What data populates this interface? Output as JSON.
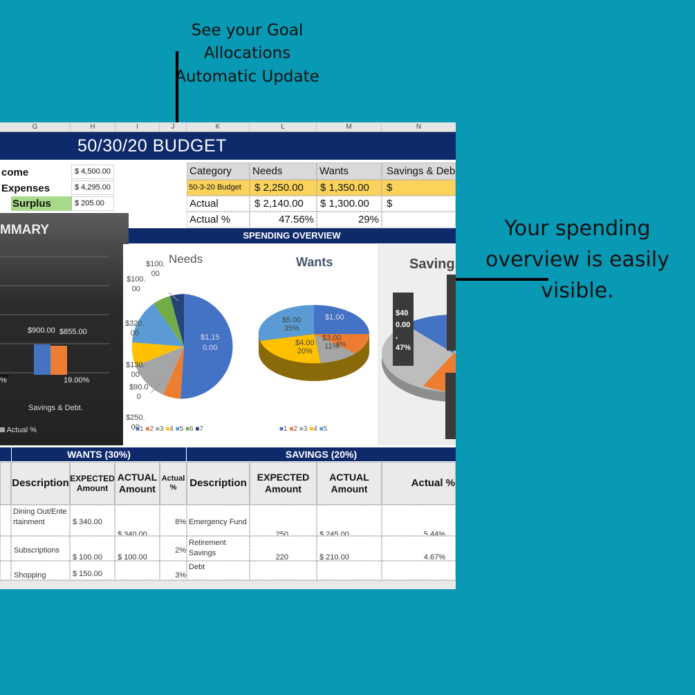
{
  "callouts": {
    "top": [
      "See your Goal",
      "Allocations",
      "Automatic Update"
    ],
    "right": [
      "Your spending",
      "overview is easily",
      "visible."
    ]
  },
  "sheet": {
    "columns": [
      "G",
      "H",
      "I",
      "J",
      "K",
      "L",
      "M",
      "N"
    ],
    "title": "50/30/20 BUDGET",
    "left_block": {
      "income_label": "come",
      "income_value": "$ 4,500.00",
      "expenses_label": "Expenses",
      "expenses_value": "$ 4,295.00",
      "surplus_label": "Surplus",
      "surplus_value": "$   205.00"
    },
    "category_table": {
      "headers": [
        "Category",
        "Needs",
        "Wants",
        "Savings & Debt"
      ],
      "rows": [
        {
          "label": "50-3-20 Budget",
          "needs": "$    2,250.00",
          "wants": "$    1,350.00",
          "savings": "$"
        },
        {
          "label": "Actual",
          "needs": "$    2,140.00",
          "wants": "$    1,300.00",
          "savings": "$"
        },
        {
          "label": "Actual    %",
          "needs": "47.56%",
          "wants": "29%",
          "savings": ""
        }
      ]
    },
    "spending_overview": "SPENDING OVERVIEW",
    "summary": {
      "title": "MMARY",
      "bar_label_1": "$900.00",
      "bar_label_2": "$855.00",
      "pct_left": "%",
      "pct_right": "19.00%",
      "category": "Savings & Debt.",
      "legend": "Actual    %"
    },
    "needs_chart": {
      "title": "Needs",
      "labels": [
        "$90.0\n0",
        "$100.\n00",
        "$250.\n00",
        "$100.\n00",
        "$320.\n00",
        "$130.\n00"
      ],
      "main_label": "$1,15\n0.00",
      "legend": [
        "1",
        "2",
        "3",
        "4",
        "5",
        "6",
        "7"
      ]
    },
    "wants_chart": {
      "title": "Wants",
      "labels": {
        "l1": "$5.00",
        "l1p": "35%",
        "l2": "$1.00",
        "l3": "$3.00",
        "l3p": "11%",
        "l4": "$4.00",
        "l4p": "20%",
        "l5": "8%"
      },
      "legend": [
        "1",
        "2",
        "3",
        "4",
        "5"
      ]
    },
    "savings_chart": {
      "title": "Savings",
      "label_a": "$40\n0.00\n,\n47%"
    },
    "wants_section": "WANTS (30%)",
    "savings_section": "SAVINGS (20%)",
    "wants_headers": {
      "desc": "Description",
      "expected": "EXPECTED Amount",
      "actual": "ACTUAL Amount",
      "pct": "Actual %"
    },
    "savings_headers": {
      "desc": "Description",
      "expected": "EXPECTED Amount",
      "actual": "ACTUAL Amount",
      "pct": "Actual   %"
    },
    "wants_rows": [
      {
        "desc": "Dining Out/Entertainment",
        "expected": "$     340.00",
        "actual": "$      340.00",
        "pct": "8%"
      },
      {
        "desc": "Subscriptions",
        "expected": "$     100.00",
        "actual": "$      100.00",
        "pct": "2%"
      },
      {
        "desc": "Shopping",
        "expected": "$     150.00",
        "actual": "",
        "pct": "3%"
      }
    ],
    "savings_rows": [
      {
        "desc": "Emergency Fund",
        "expected": "250",
        "actual": "$          245.00",
        "pct": "5.44%"
      },
      {
        "desc": "Retirement Savings",
        "expected": "220",
        "actual": "$          210.00",
        "pct": "4.67%"
      },
      {
        "desc": "Debt",
        "expected": "",
        "actual": "",
        "pct": ""
      }
    ]
  },
  "colors": {
    "background": "#0899b4",
    "navy": "#0f2a6b",
    "yellow": "#fbd35a",
    "pie": [
      "#4472c4",
      "#ed7d31",
      "#a5a5a5",
      "#ffc000",
      "#5b9bd5",
      "#70ad47",
      "#264478"
    ]
  }
}
